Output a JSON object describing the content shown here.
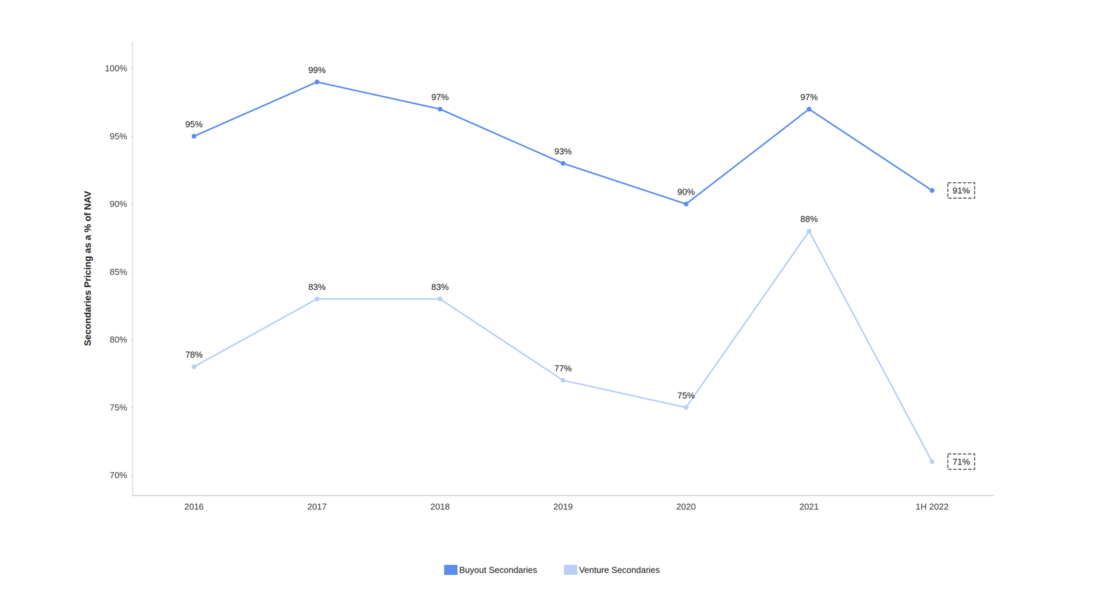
{
  "chart_data": {
    "type": "line",
    "categories": [
      "2016",
      "2017",
      "2018",
      "2019",
      "2020",
      "2021",
      "1H 2022"
    ],
    "series": [
      {
        "name": "Buyout Secondaries",
        "color": "#5b8def",
        "values": [
          95,
          99,
          97,
          93,
          90,
          97,
          91
        ],
        "value_labels": [
          "95%",
          "99%",
          "97%",
          "93%",
          "90%",
          "97%",
          "91%"
        ]
      },
      {
        "name": "Venture Secondaries",
        "color": "#b8cff5",
        "values": [
          78,
          83,
          83,
          77,
          75,
          88,
          71
        ],
        "value_labels": [
          "78%",
          "83%",
          "83%",
          "77%",
          "75%",
          "88%",
          "71%"
        ]
      }
    ],
    "ylabel": "Secondaries Pricing as a % of NAV",
    "ylim": [
      68.5,
      102
    ],
    "yticks": [
      {
        "value": 70,
        "label": "70%"
      },
      {
        "value": 75,
        "label": "75%"
      },
      {
        "value": 80,
        "label": "80%"
      },
      {
        "value": 85,
        "label": "85%"
      },
      {
        "value": 90,
        "label": "90%"
      },
      {
        "value": 95,
        "label": "95%"
      },
      {
        "value": 100,
        "label": "100%"
      }
    ],
    "grid": false,
    "legend": "bottom",
    "data_labels": true,
    "marker": "circle"
  }
}
